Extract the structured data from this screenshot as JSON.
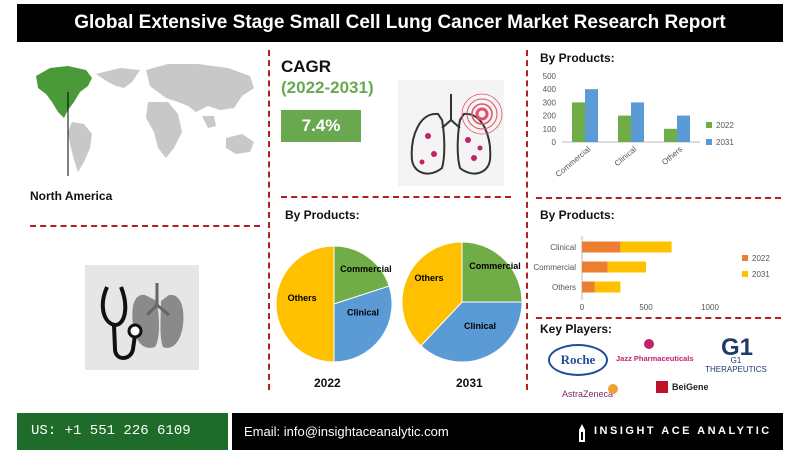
{
  "header": {
    "title": "Global Extensive Stage Small Cell Lung Cancer Market Research Report"
  },
  "region": {
    "label": "North America"
  },
  "cagr": {
    "title": "CAGR",
    "years": "(2022-2031)",
    "value": "7.4%"
  },
  "colors": {
    "series_2022": "#70ad47",
    "series_2031": "#5b9bd5",
    "hbar_2022": "#ed7d31",
    "hbar_2031": "#ffc000",
    "pie_commercial": "#70ad47",
    "pie_clinical": "#5b9bd5",
    "pie_others": "#ffc000",
    "accent_green": "#6aa84f",
    "divider": "#b02020"
  },
  "sections": {
    "bar_title": "By Products:",
    "pie_title": "By Products:",
    "hbar_title": "By Products:",
    "players_title": "Key Players:"
  },
  "key_players": [
    "Roche",
    "Jazz Pharmaceuticals",
    "G1 THERAPEUTICS",
    "AstraZeneca",
    "BeiGene"
  ],
  "footer": {
    "phone": "US: +1 551 226 6109",
    "email": "Email: info@insightaceanalytic.com",
    "brand": "INSIGHT ACE ANALYTIC"
  },
  "icons": [
    "world-map-icon",
    "lungs-target-icon",
    "stethoscope-lungs-icon",
    "brand-logo-icon"
  ],
  "chart_data": [
    {
      "type": "bar",
      "title": "By Products:",
      "categories": [
        "Commercial",
        "Clinical",
        "Others"
      ],
      "series": [
        {
          "name": "2022",
          "values": [
            300,
            200,
            100
          ]
        },
        {
          "name": "2031",
          "values": [
            400,
            300,
            200
          ]
        }
      ],
      "yticks": [
        "0",
        "100",
        "200",
        "300",
        "400",
        "500"
      ],
      "ylim": [
        0,
        500
      ],
      "legend": "right"
    },
    {
      "type": "pie",
      "title": "By Products:",
      "label": "2022",
      "categories": [
        "Commercial",
        "Clinical",
        "Others"
      ],
      "values": [
        20,
        30,
        50
      ]
    },
    {
      "type": "pie",
      "title": "By Products:",
      "label": "2031",
      "categories": [
        "Commercial",
        "Clinical",
        "Others"
      ],
      "values": [
        25,
        37,
        38
      ]
    },
    {
      "type": "bar",
      "orientation": "horizontal",
      "stacked": true,
      "title": "By Products:",
      "categories": [
        "Clinical",
        "Commercial",
        "Others"
      ],
      "series": [
        {
          "name": "2022",
          "values": [
            300,
            200,
            100
          ]
        },
        {
          "name": "2031",
          "values": [
            400,
            300,
            200
          ]
        }
      ],
      "xticks": [
        "0",
        "500",
        "1000"
      ],
      "xlim": [
        0,
        1000
      ],
      "legend": "right"
    }
  ]
}
